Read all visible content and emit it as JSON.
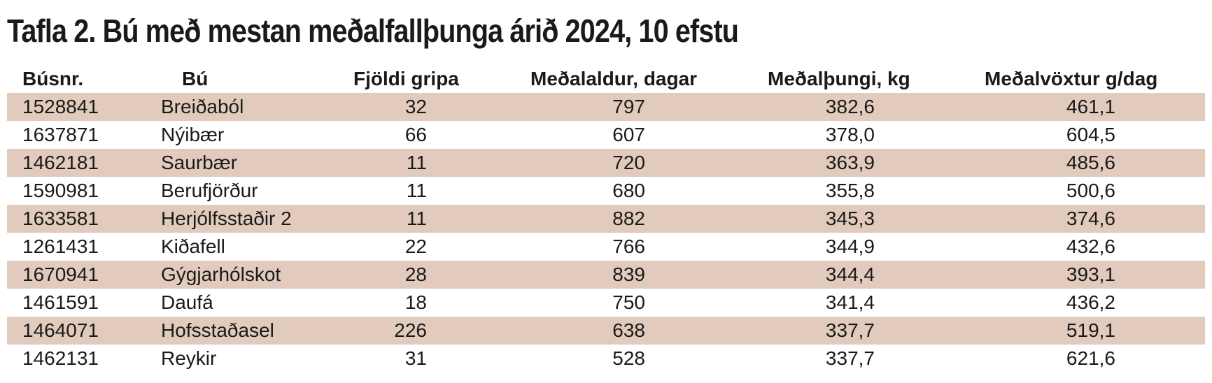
{
  "title": "Tafla 2. Bú með mestan meðalfallþunga árið 2024, 10 efstu",
  "columns": [
    "Búsnr.",
    "Bú",
    "Fjöldi gripa",
    "Meðalaldur, dagar",
    "Meðalþungi, kg",
    "Meðalvöxtur g/dag"
  ],
  "rows": [
    [
      "1528841",
      "Breiðaból",
      "32",
      "797",
      "382,6",
      "461,1"
    ],
    [
      "1637871",
      "Nýibær",
      "66",
      "607",
      "378,0",
      "604,5"
    ],
    [
      "1462181",
      "Saurbær",
      "11",
      "720",
      "363,9",
      "485,6"
    ],
    [
      "1590981",
      "Berufjörður",
      "11",
      "680",
      "355,8",
      "500,6"
    ],
    [
      "1633581",
      "Herjólfsstaðir 2",
      "11",
      "882",
      "345,3",
      "374,6"
    ],
    [
      "1261431",
      "Kiðafell",
      "22",
      "766",
      "344,9",
      "432,6"
    ],
    [
      "1670941",
      "Gýgjarhólskot",
      "28",
      "839",
      "344,4",
      "393,1"
    ],
    [
      "1461591",
      "Daufá",
      "18",
      "750",
      "341,4",
      "436,2"
    ],
    [
      "1464071",
      "Hofsstaðasel",
      "226",
      "638",
      "337,7",
      "519,1"
    ],
    [
      "1462131",
      "Reykir",
      "31",
      "528",
      "337,7",
      "621,6"
    ]
  ],
  "colors": {
    "row_shade": "#e2cbbd",
    "text": "#1a1a1a"
  }
}
